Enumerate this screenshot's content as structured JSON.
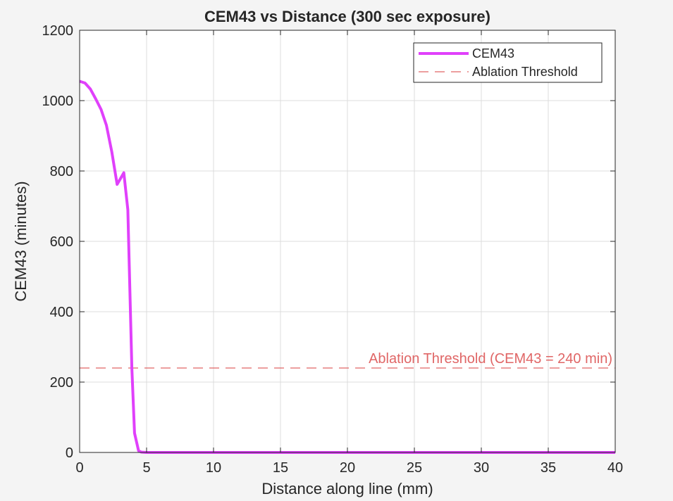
{
  "chart_data": {
    "type": "line",
    "title": "CEM43 vs Distance (300 sec exposure)",
    "xlabel": "Distance along line (mm)",
    "ylabel": "CEM43 (minutes)",
    "xlim": [
      0,
      40
    ],
    "ylim": [
      0,
      1200
    ],
    "xticks": [
      0,
      5,
      10,
      15,
      20,
      25,
      30,
      35,
      40
    ],
    "yticks": [
      0,
      200,
      400,
      600,
      800,
      1000,
      1200
    ],
    "grid": true,
    "legend_position": "top-right",
    "series": [
      {
        "name": "CEM43",
        "color": "#e040fb",
        "style": "solid",
        "x": [
          0,
          0.4,
          0.8,
          1.2,
          1.6,
          2.0,
          2.4,
          2.8,
          3.0,
          3.3,
          3.6,
          3.9,
          4.1,
          4.4,
          4.6,
          5.0,
          6,
          10,
          15,
          20,
          25,
          30,
          35,
          40
        ],
        "y": [
          1055,
          1050,
          1033,
          1005,
          975,
          930,
          855,
          762,
          775,
          795,
          690,
          240,
          55,
          5,
          1,
          0,
          0,
          0,
          0,
          0,
          0,
          0,
          0,
          0
        ]
      },
      {
        "name": "Ablation Threshold",
        "color": "#e06666",
        "style": "dashed",
        "x": [
          0,
          40
        ],
        "y": [
          240,
          240
        ]
      }
    ],
    "annotations": [
      {
        "text": "Ablation Threshold (CEM43 = 240 min)",
        "x": 40,
        "y": 240,
        "align": "right",
        "color": "#e06666"
      }
    ]
  }
}
